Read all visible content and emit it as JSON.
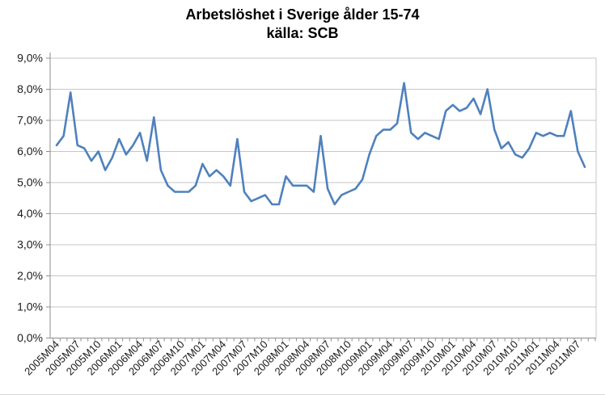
{
  "title": "Arbetslöshet i Sverige ålder 15-74",
  "subtitle": "källa: SCB",
  "chart_data": {
    "type": "line",
    "title": "Arbetslöshet i Sverige ålder 15-74",
    "subtitle": "källa: SCB",
    "legend": "none",
    "grid": "horizontal",
    "ylim": [
      0,
      9
    ],
    "y_step": 1,
    "y_tick_labels": [
      "0,0%",
      "1,0%",
      "2,0%",
      "3,0%",
      "4,0%",
      "5,0%",
      "6,0%",
      "7,0%",
      "8,0%",
      "9,0%"
    ],
    "x_label_every": 3,
    "x_tick_labels": [
      "2005M04",
      "2005M07",
      "2005M10",
      "2006M01",
      "2006M04",
      "2006M07",
      "2006M10",
      "2007M01",
      "2007M04",
      "2007M07",
      "2007M10",
      "2008M01",
      "2008M04",
      "2008M07",
      "2008M10",
      "2009M01",
      "2009M04",
      "2009M07",
      "2009M10",
      "2010M01",
      "2010M04",
      "2010M07",
      "2010M10",
      "2011M01",
      "2011M04",
      "2011M07"
    ],
    "x": [
      "2005M04",
      "2005M05",
      "2005M06",
      "2005M07",
      "2005M08",
      "2005M09",
      "2005M10",
      "2005M11",
      "2005M12",
      "2006M01",
      "2006M02",
      "2006M03",
      "2006M04",
      "2006M05",
      "2006M06",
      "2006M07",
      "2006M08",
      "2006M09",
      "2006M10",
      "2006M11",
      "2006M12",
      "2007M01",
      "2007M02",
      "2007M03",
      "2007M04",
      "2007M05",
      "2007M06",
      "2007M07",
      "2007M08",
      "2007M09",
      "2007M10",
      "2007M11",
      "2007M12",
      "2008M01",
      "2008M02",
      "2008M03",
      "2008M04",
      "2008M05",
      "2008M06",
      "2008M07",
      "2008M08",
      "2008M09",
      "2008M10",
      "2008M11",
      "2008M12",
      "2009M01",
      "2009M02",
      "2009M03",
      "2009M04",
      "2009M05",
      "2009M06",
      "2009M07",
      "2009M08",
      "2009M09",
      "2009M10",
      "2009M11",
      "2009M12",
      "2010M01",
      "2010M02",
      "2010M03",
      "2010M04",
      "2010M05",
      "2010M06",
      "2010M07",
      "2010M08",
      "2010M09",
      "2010M10",
      "2010M11",
      "2010M12",
      "2011M01",
      "2011M02",
      "2011M03",
      "2011M04",
      "2011M05",
      "2011M06",
      "2011M07",
      "2011M08"
    ],
    "values": [
      6.2,
      6.5,
      7.9,
      6.2,
      6.1,
      5.7,
      6.0,
      5.4,
      5.8,
      6.4,
      5.9,
      6.2,
      6.6,
      5.7,
      7.1,
      5.4,
      4.9,
      4.7,
      4.7,
      4.7,
      4.9,
      5.6,
      5.2,
      5.4,
      5.2,
      4.9,
      6.4,
      4.7,
      4.4,
      4.5,
      4.6,
      4.3,
      4.3,
      5.2,
      4.9,
      4.9,
      4.9,
      4.7,
      6.5,
      4.8,
      4.3,
      4.6,
      4.7,
      4.8,
      5.1,
      5.9,
      6.5,
      6.7,
      6.7,
      6.9,
      8.2,
      6.6,
      6.4,
      6.6,
      6.5,
      6.4,
      7.3,
      7.5,
      7.3,
      7.4,
      7.7,
      7.2,
      8.0,
      6.7,
      6.1,
      6.3,
      5.9,
      5.8,
      6.1,
      6.6,
      6.5,
      6.6,
      6.5,
      6.5,
      7.3,
      6.0,
      5.5
    ],
    "line_color": "#4F81BD",
    "grid_color": "#C6C6C6",
    "axis_color": "#8E8E8E",
    "text_color": "#1a1a1a"
  }
}
